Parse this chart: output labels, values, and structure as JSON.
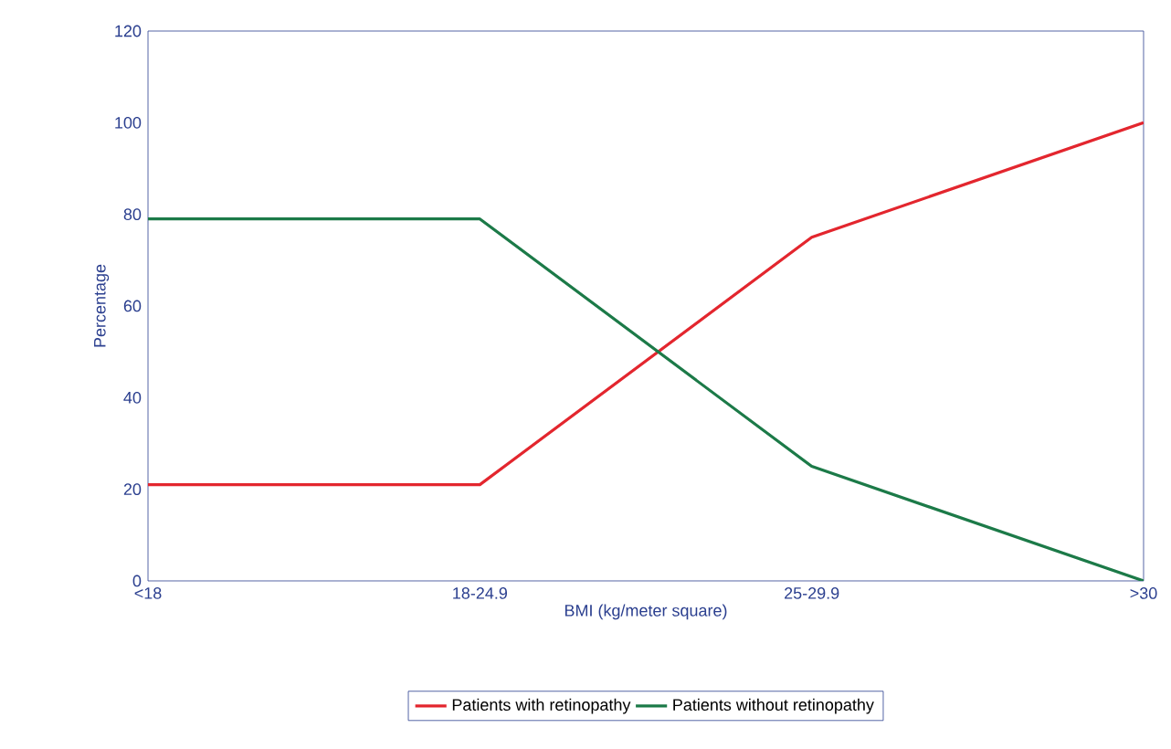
{
  "chart_data": {
    "type": "line",
    "xlabel": "BMI (kg/meter square)",
    "ylabel": "Percentage",
    "categories": [
      "<18",
      "18-24.9",
      "25-29.9",
      ">30"
    ],
    "series": [
      {
        "name": "Patients with retinopathy",
        "color": "#e3262e",
        "values": [
          21,
          21,
          75,
          100
        ]
      },
      {
        "name": "Patients without retinopathy",
        "color": "#1c7a48",
        "values": [
          79,
          79,
          25,
          0
        ]
      }
    ],
    "ylim": [
      0,
      120
    ],
    "yticks": [
      0,
      20,
      40,
      60,
      80,
      100,
      120
    ],
    "legend": "bottom",
    "marker": "none",
    "line_style": "solid",
    "grid": false
  }
}
